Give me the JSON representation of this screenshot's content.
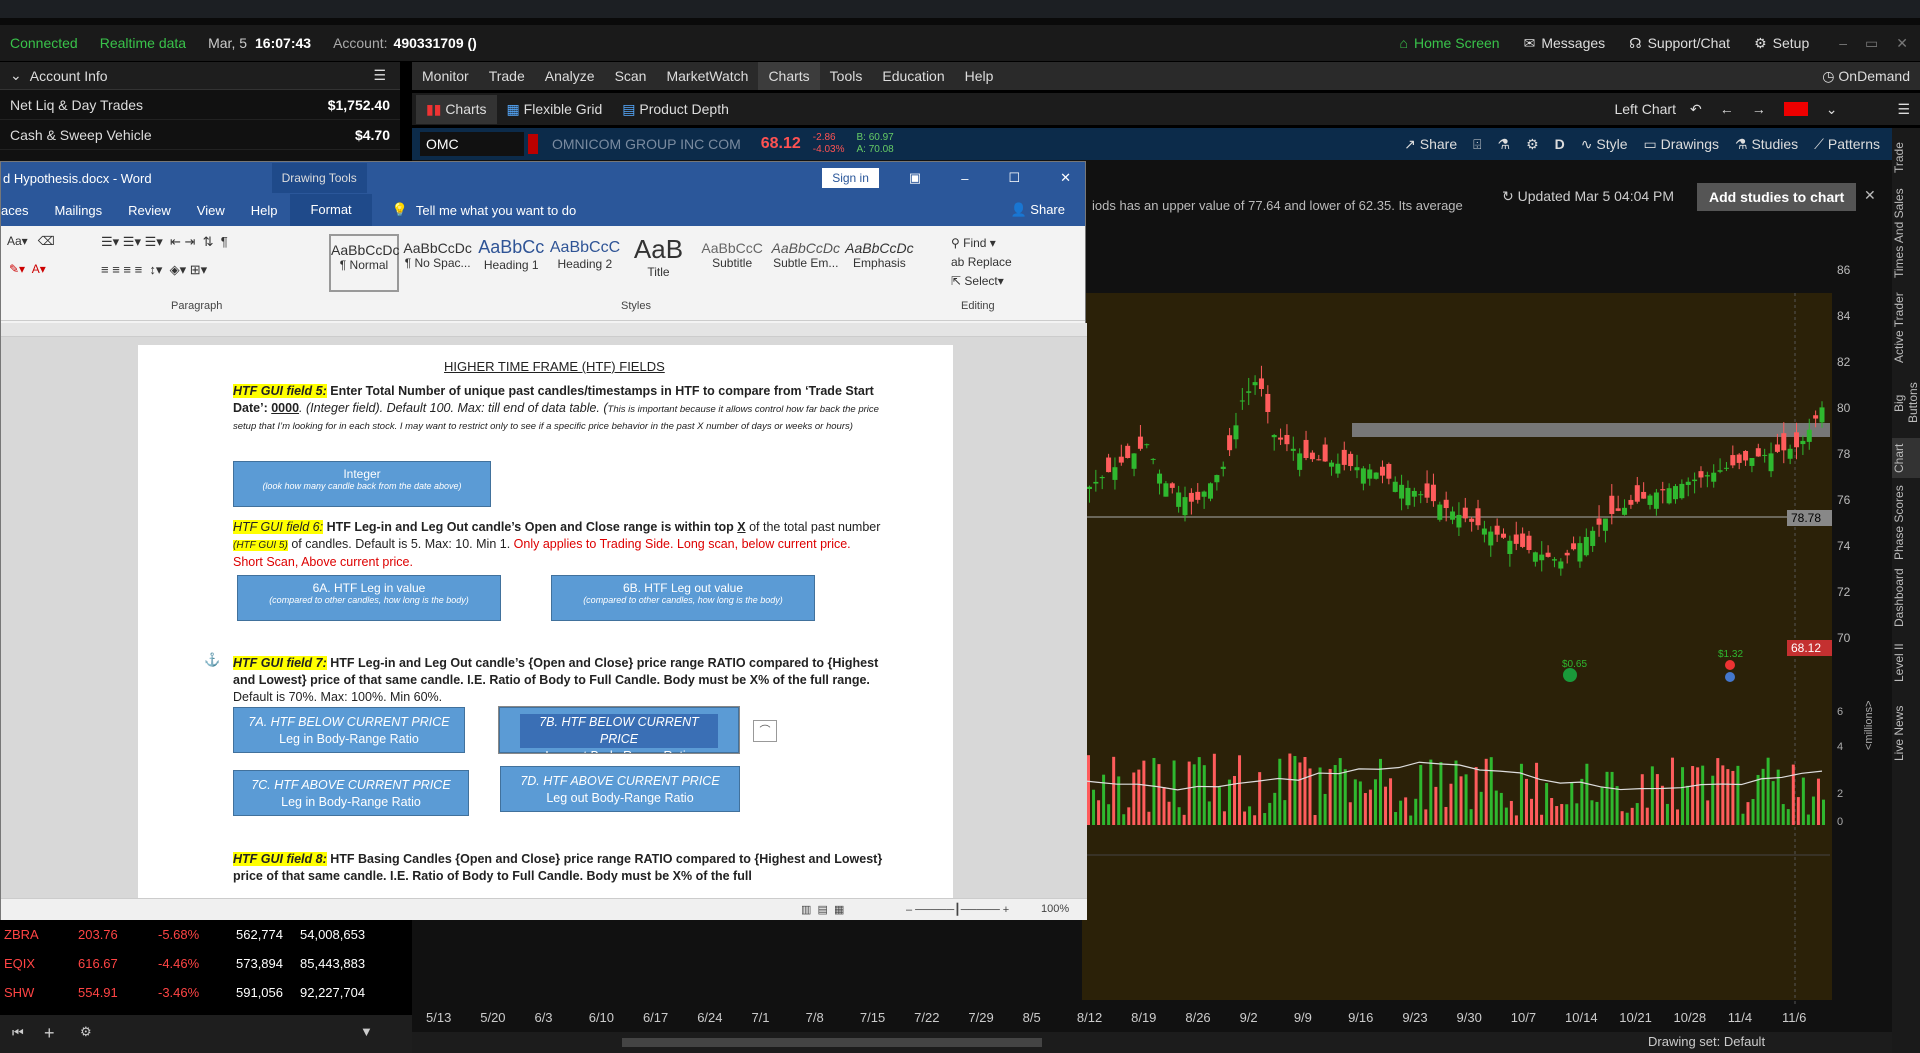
{
  "status": {
    "connected": "Connected",
    "realtime": "Realtime data",
    "date": "Mar, 5",
    "time": "16:07:43",
    "account_label": "Account:",
    "account_value": "490331709 ()",
    "home_screen": "Home Screen",
    "messages": "Messages",
    "support": "Support/Chat",
    "setup": "Setup"
  },
  "account_panel": {
    "title": "Account Info",
    "rows": [
      {
        "label": "Net Liq & Day Trades",
        "value": "$1,752.40"
      },
      {
        "label": "Cash & Sweep Vehicle",
        "value": "$4.70"
      }
    ]
  },
  "menu": {
    "items": [
      "Monitor",
      "Trade",
      "Analyze",
      "Scan",
      "MarketWatch",
      "Charts",
      "Tools",
      "Education",
      "Help"
    ],
    "ondemand": "OnDemand"
  },
  "subtabs": {
    "charts": "Charts",
    "flexible_grid": "Flexible Grid",
    "product_depth": "Product Depth",
    "left_chart": "Left Chart"
  },
  "symbol_bar": {
    "symbol": "OMC",
    "company": "OMNICOM GROUP INC COM",
    "price": "68.12",
    "change": "-2.86",
    "change_pct": "-4.03%",
    "bid": "B: 60.97",
    "ask": "A: 70.08",
    "share": "Share",
    "d": "D",
    "style": "Style",
    "drawings": "Drawings",
    "studies": "Studies",
    "patterns": "Patterns"
  },
  "chart_header": {
    "desc": "iods has an upper value of 77.64 and lower of 62.35. Its average",
    "updated": "Updated Mar 5 04:04 PM",
    "add_studies": "Add studies to chart"
  },
  "chart_data": {
    "type": "candlestick",
    "y_ticks": [
      "86",
      "84",
      "82",
      "80",
      "78",
      "76",
      "74",
      "72",
      "70"
    ],
    "x_ticks": [
      "5/13",
      "5/20",
      "6/3",
      "6/10",
      "6/17",
      "6/24",
      "7/1",
      "7/8",
      "7/15",
      "7/22",
      "7/29",
      "8/5",
      "8/12",
      "8/19",
      "8/26",
      "9/2",
      "9/9",
      "9/16",
      "9/23",
      "9/30",
      "10/7",
      "10/14",
      "10/21",
      "10/28",
      "11/4",
      "11/6"
    ],
    "price_labels": [
      "78.78",
      "68.12"
    ],
    "volume_ticks": [
      "6",
      "4",
      "2",
      "0"
    ],
    "volume_unit": "<millions>",
    "events": [
      "$0.65",
      "$1.32"
    ],
    "colors": {
      "up": "#2fb82f",
      "down": "#ff5c5c",
      "bg": "#2b2108"
    }
  },
  "right_tabs": [
    "Trade",
    "Times And Sales",
    "Active Trader",
    "Big Buttons",
    "Chart",
    "Phase Scores",
    "Dashboard",
    "Level II",
    "Live News"
  ],
  "word": {
    "title": "d Hypothesis.docx  -  Word",
    "drawing_tools": "Drawing Tools",
    "signin": "Sign in",
    "tabs": [
      "aces",
      "Mailings",
      "Review",
      "View",
      "Help",
      "Format"
    ],
    "tell_me": "Tell me what you want to do",
    "share": "Share",
    "paragraph": "Paragraph",
    "styles_label": "Styles",
    "editing": "Editing",
    "styles": [
      {
        "preview": "AaBbCcDc",
        "name": "¶ Normal"
      },
      {
        "preview": "AaBbCcDc",
        "name": "¶ No Spac..."
      },
      {
        "preview": "AaBbCc",
        "name": "Heading 1"
      },
      {
        "preview": "AaBbCcC",
        "name": "Heading 2"
      },
      {
        "preview": "AaB",
        "name": "Title"
      },
      {
        "preview": "AaBbCcC",
        "name": "Subtitle"
      },
      {
        "preview": "AaBbCcDc",
        "name": "Subtle Em..."
      },
      {
        "preview": "AaBbCcDc",
        "name": "Emphasis"
      }
    ],
    "find": "Find",
    "replace": "Replace",
    "select": "Select",
    "zoom": "100%",
    "doc": {
      "heading": "HIGHER TIME FRAME (HTF) FIELDS",
      "f5_tag": "HTF GUI field 5:",
      "f5_text": "Enter Total Number of unique past candles/timestamps in HTF to compare from ‘Trade Start Date’:",
      "f5_val": "0000",
      "f5_rest": ". (Integer field). Default 100. Max: till end of data table. (",
      "f5_small": "This is important because it allows control how far back the price setup that I’m looking for in each stock. I may want to restrict only to see if a specific price behavior in the past X number of days or weeks or hours)",
      "btn_integer": "Integer",
      "btn_integer_sub": "(look how many candle back from the date above)",
      "f6_tag": "HTF GUI field 6:",
      "f6_text": "HTF Leg-in and Leg Out candle’s Open and Close range is within top",
      "f6_x": "X",
      "f6_text2": "of the total past number",
      "f6_ref": "(HTF GUI 5)",
      "f6_text3": "of candles. Default is 5. Max: 10. Min 1.",
      "f6_red": "Only applies to Trading Side. Long scan, below current price. Short Scan, Above current price.",
      "btn_6a": "6A. HTF Leg in value",
      "btn_6b": "6B. HTF Leg out value",
      "btn_6_sub": "(compared to other candles, how long is the body)",
      "f7_tag": "HTF GUI field 7:",
      "f7_text": "HTF Leg-in and Leg Out candle’s {Open and Close} price range RATIO compared to {Highest and Lowest} price of that same candle. I.E. Ratio of Body to Full Candle. Body must be X% of the full range.",
      "f7_rest": "Default is 70%. Max: 100%. Min 60%.",
      "btn_7a_1": "7A. HTF BELOW CURRENT PRICE",
      "btn_7a_2": "Leg in Body-Range Ratio",
      "btn_7b_1": "7B. HTF BELOW CURRENT PRICE",
      "btn_7b_2": "Leg out Body-Range Ratio",
      "btn_7c_1": "7C. HTF ABOVE CURRENT PRICE",
      "btn_7c_2": "Leg in Body-Range Ratio",
      "btn_7d_1": "7D. HTF ABOVE CURRENT PRICE",
      "btn_7d_2": "Leg out Body-Range Ratio",
      "f8_tag": "HTF GUI field 8:",
      "f8_text": "HTF Basing Candles {Open and Close} price range RATIO compared to {Highest and Lowest} price of that same candle. I.E. Ratio of Body to Full Candle. Body must be X% of the full"
    }
  },
  "watchlist": [
    {
      "sym": "ZBRA",
      "last": "203.76",
      "chg": "-5.68%",
      "vol": "562,774",
      "mcap": "54,008,653"
    },
    {
      "sym": "EQIX",
      "last": "616.67",
      "chg": "-4.46%",
      "vol": "573,894",
      "mcap": "85,443,883"
    },
    {
      "sym": "SHW",
      "last": "554.91",
      "chg": "-3.46%",
      "vol": "591,056",
      "mcap": "92,227,704"
    }
  ],
  "footer": {
    "drawing_set": "Drawing set: Default"
  }
}
